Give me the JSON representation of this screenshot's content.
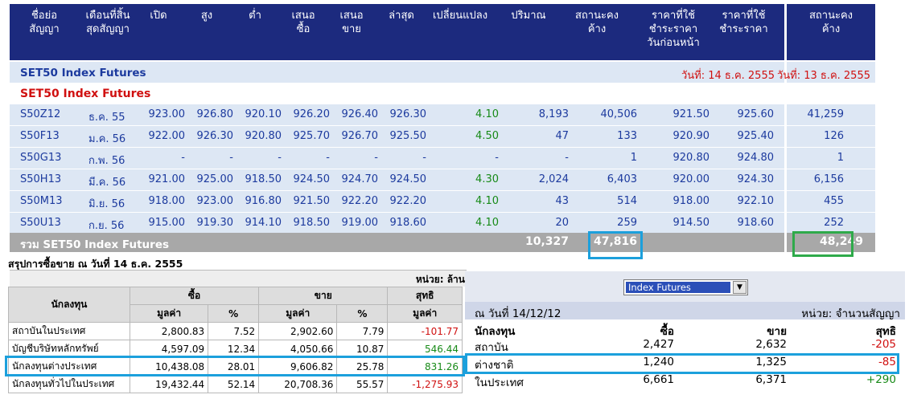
{
  "header": {
    "cols": [
      "ชื่อย่อ\nสัญญา",
      "เดือนที่สิ้น\nสุดสัญญา",
      "เปิด",
      "สูง",
      "ต่ำ",
      "เสนอ\nซื้อ",
      "เสนอ\nขาย",
      "ล่าสุด",
      "เปลี่ยนแปลง",
      "ปริมาณ",
      "สถานะคง\nค้าง",
      "ราคาที่ใช้\nชำระราคา\nวันก่อนหน้า",
      "ราคาที่ใช้\nชำระราคา"
    ],
    "right_col": "สถานะคง\nค้าง"
  },
  "section_title": "SET50 Index Futures",
  "date_left": "วันที่: 14 ธ.ค. 2555",
  "date_right": "วันที่: 13 ธ.ค. 2555",
  "group_title": "SET50 Index Futures",
  "rows": [
    {
      "symbol": "S50Z12",
      "month": "ธ.ค. 55",
      "open": "923.00",
      "high": "926.80",
      "low": "920.10",
      "bid": "926.20",
      "offer": "926.40",
      "last": "926.30",
      "change": "4.10",
      "volume": "8,193",
      "oi": "40,506",
      "prev_settle": "921.50",
      "settle": "925.60",
      "oi_prev": "41,259"
    },
    {
      "symbol": "S50F13",
      "month": "ม.ค. 56",
      "open": "922.00",
      "high": "926.30",
      "low": "920.80",
      "bid": "925.70",
      "offer": "926.70",
      "last": "925.50",
      "change": "4.50",
      "volume": "47",
      "oi": "133",
      "prev_settle": "920.90",
      "settle": "925.40",
      "oi_prev": "126"
    },
    {
      "symbol": "S50G13",
      "month": "ก.พ. 56",
      "open": "-",
      "high": "-",
      "low": "-",
      "bid": "-",
      "offer": "-",
      "last": "-",
      "change": "-",
      "volume": "-",
      "oi": "1",
      "prev_settle": "920.80",
      "settle": "924.80",
      "oi_prev": "1"
    },
    {
      "symbol": "S50H13",
      "month": "มี.ค. 56",
      "open": "921.00",
      "high": "925.00",
      "low": "918.50",
      "bid": "924.50",
      "offer": "924.70",
      "last": "924.50",
      "change": "4.30",
      "volume": "2,024",
      "oi": "6,403",
      "prev_settle": "920.00",
      "settle": "924.30",
      "oi_prev": "6,156"
    },
    {
      "symbol": "S50M13",
      "month": "มิ.ย. 56",
      "open": "918.00",
      "high": "923.00",
      "low": "916.80",
      "bid": "921.50",
      "offer": "922.20",
      "last": "922.20",
      "change": "4.10",
      "volume": "43",
      "oi": "514",
      "prev_settle": "918.00",
      "settle": "922.10",
      "oi_prev": "455"
    },
    {
      "symbol": "S50U13",
      "month": "ก.ย. 56",
      "open": "915.00",
      "high": "919.30",
      "low": "914.10",
      "bid": "918.50",
      "offer": "919.00",
      "last": "918.60",
      "change": "4.10",
      "volume": "20",
      "oi": "259",
      "prev_settle": "914.50",
      "settle": "918.60",
      "oi_prev": "252"
    }
  ],
  "total": {
    "label": "รวม SET50 Index Futures",
    "volume": "10,327",
    "oi": "47,816",
    "oi_prev": "48,249"
  },
  "summary": {
    "title": "สรุปการซื้อขาย ณ วันที่ 14 ธ.ค. 2555",
    "unit": "หน่วย: ล้าน",
    "col_investor": "นักลงทุน",
    "col_buy": "ซื้อ",
    "col_sell": "ขาย",
    "col_net": "สุทธิ",
    "col_value": "มูลค่า",
    "col_pct": "%",
    "rows": [
      {
        "name": "สถาบันในประเทศ",
        "buy": "2,800.83",
        "buy_pct": "7.52",
        "sell": "2,902.60",
        "sell_pct": "7.79",
        "net": "-101.77"
      },
      {
        "name": "บัญชีบริษัทหลักทรัพย์",
        "buy": "4,597.09",
        "buy_pct": "12.34",
        "sell": "4,050.66",
        "sell_pct": "10.87",
        "net": "546.44"
      },
      {
        "name": "นักลงทุนต่างประเทศ",
        "buy": "10,438.08",
        "buy_pct": "28.01",
        "sell": "9,606.82",
        "sell_pct": "25.78",
        "net": "831.26"
      },
      {
        "name": "นักลงทุนทั่วไปในประเทศ",
        "buy": "19,432.44",
        "buy_pct": "52.14",
        "sell": "20,708.36",
        "sell_pct": "55.57",
        "net": "-1,275.93"
      }
    ]
  },
  "panel": {
    "select_value": "Index Futures",
    "date": "ณ วันที่ 14/12/12",
    "unit": "หน่วย: จำนวนสัญญา",
    "col_investor": "นักลงทุน",
    "col_buy": "ซื้อ",
    "col_sell": "ขาย",
    "col_net": "สุทธิ",
    "rows": [
      {
        "name": "สถาบัน",
        "buy": "2,427",
        "sell": "2,632",
        "net": "-205"
      },
      {
        "name": "ต่างชาติ",
        "buy": "1,240",
        "sell": "1,325",
        "net": "-85"
      },
      {
        "name": "ในประเทศ",
        "buy": "6,661",
        "sell": "6,371",
        "net": "+290"
      }
    ]
  },
  "colors": {
    "header_bg": "#1c2a7e",
    "row_bg": "#dde7f4",
    "positive": "#178a17",
    "negative": "#d01010",
    "highlight_blue": "#1ca0dc",
    "highlight_green": "#2eaa4a"
  }
}
